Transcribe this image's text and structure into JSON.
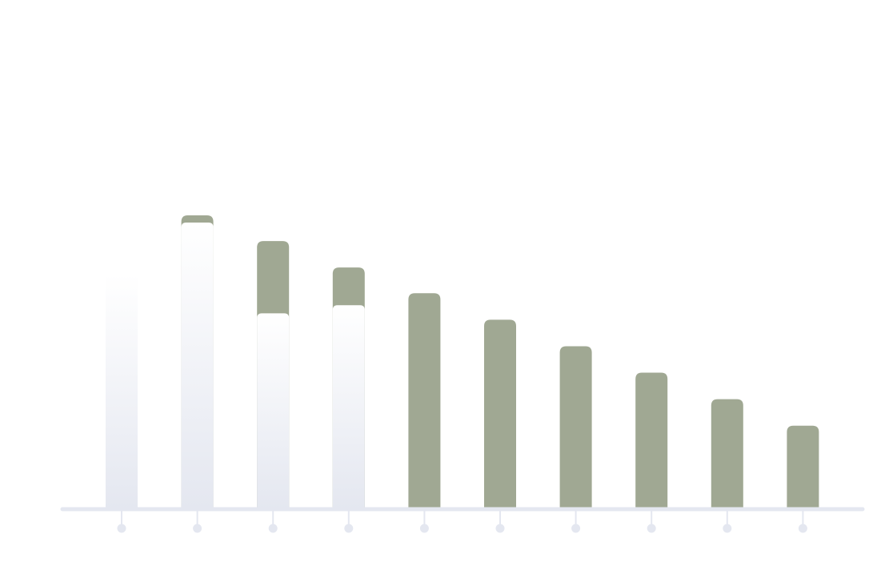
{
  "chart_data": {
    "type": "bar",
    "title": "",
    "xlabel": "",
    "ylabel": "",
    "categories": [
      "",
      "",
      "",
      "",
      "",
      "",
      "",
      "",
      "",
      ""
    ],
    "series": [
      {
        "values": [
          0,
          36.6,
          33.4,
          30.1,
          26.9,
          23.6,
          20.3,
          17.0,
          13.7,
          10.4
        ]
      }
    ],
    "overlay_values": [
      29.3,
      35.7,
      24.4,
      25.4,
      0,
      0,
      0,
      0,
      0,
      0
    ],
    "ylim": [
      0,
      40
    ],
    "grid": false,
    "legend": "none",
    "colors": {
      "bar": "#a0a893",
      "overlay_top": "#ffffff",
      "overlay_bottom": "#e4e7f0",
      "axis": "#e4e7f0",
      "tick": "#e4e7f0"
    }
  }
}
